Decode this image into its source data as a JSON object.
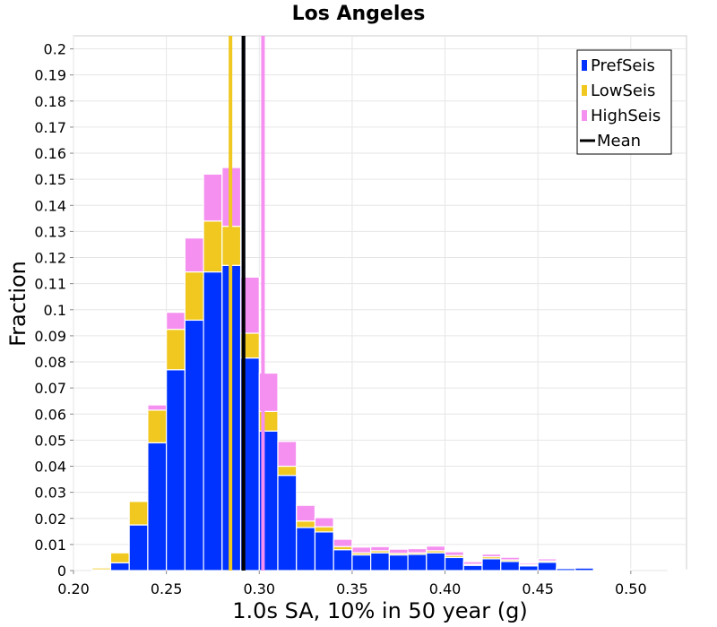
{
  "chart_data": {
    "type": "bar",
    "stacked": true,
    "title": "Los Angeles",
    "xlabel": "1.0s SA, 10% in 50 year (g)",
    "ylabel": "Fraction",
    "xlim": [
      0.2,
      0.53
    ],
    "ylim": [
      0,
      0.205
    ],
    "x_ticks": [
      "0.20",
      "0.25",
      "0.30",
      "0.35",
      "0.40",
      "0.45",
      "0.50"
    ],
    "y_ticks": [
      "0",
      "0.01",
      "0.02",
      "0.03",
      "0.04",
      "0.05",
      "0.06",
      "0.07",
      "0.08",
      "0.09",
      "0.1",
      "0.11",
      "0.12",
      "0.13",
      "0.14",
      "0.15",
      "0.16",
      "0.17",
      "0.18",
      "0.19",
      "0.2"
    ],
    "grid": true,
    "legend_position": "top-right",
    "bin_width": 0.01,
    "x": [
      0.215,
      0.225,
      0.235,
      0.245,
      0.255,
      0.265,
      0.275,
      0.285,
      0.295,
      0.305,
      0.315,
      0.325,
      0.335,
      0.345,
      0.355,
      0.365,
      0.375,
      0.385,
      0.395,
      0.405,
      0.415,
      0.425,
      0.435,
      0.445,
      0.455,
      0.465,
      0.475,
      0.485,
      0.495,
      0.505,
      0.515,
      0.525
    ],
    "series": [
      {
        "name": "PrefSeis",
        "color": "#0033ff",
        "values": [
          0.0003,
          0.003,
          0.0175,
          0.049,
          0.077,
          0.096,
          0.1145,
          0.117,
          0.0815,
          0.0535,
          0.0365,
          0.0165,
          0.0148,
          0.008,
          0.006,
          0.0068,
          0.006,
          0.0062,
          0.0068,
          0.005,
          0.002,
          0.0045,
          0.0035,
          0.0018,
          0.0032,
          0.0008,
          0.001,
          0.0004,
          0.0003,
          0,
          0,
          0.0003
        ]
      },
      {
        "name": "LowSeis",
        "color": "#f0c820",
        "values": [
          0.0007,
          0.0038,
          0.009,
          0.0125,
          0.0155,
          0.0185,
          0.0195,
          0.015,
          0.0095,
          0.0075,
          0.0035,
          0.0025,
          0.002,
          0.0012,
          0.0008,
          0.0008,
          0.0006,
          0.0006,
          0.0008,
          0.0008,
          0.0004,
          0.0008,
          0.0006,
          0.0004,
          0.0005,
          0.0002,
          0.0002,
          0.0001,
          0.0001,
          0,
          0,
          0
        ]
      },
      {
        "name": "HighSeis",
        "color": "#f590f0",
        "values": [
          0,
          0,
          0,
          0.002,
          0.0065,
          0.013,
          0.018,
          0.0225,
          0.0215,
          0.0147,
          0.0095,
          0.006,
          0.0035,
          0.0028,
          0.0022,
          0.0016,
          0.0016,
          0.0016,
          0.0018,
          0.0014,
          0.001,
          0.001,
          0.001,
          0.0006,
          0.0008,
          0.0002,
          0.0003,
          0.0001,
          0.0001,
          0,
          0,
          0
        ]
      }
    ],
    "vertical_lines": [
      {
        "series": "LowSeis",
        "x": 0.2845,
        "color": "#f0c820"
      },
      {
        "series": "HighSeis",
        "x": 0.302,
        "color": "#f590f0"
      },
      {
        "series": "PrefSeis",
        "x": 0.2915,
        "color": "#003399"
      },
      {
        "series": "Mean",
        "x": 0.2915,
        "color": "#000000"
      }
    ],
    "legend": [
      {
        "label": "PrefSeis",
        "color": "#0033ff",
        "marker": "box"
      },
      {
        "label": "LowSeis",
        "color": "#f0c820",
        "marker": "box"
      },
      {
        "label": "HighSeis",
        "color": "#f590f0",
        "marker": "box"
      },
      {
        "label": "Mean",
        "color": "#000000",
        "marker": "line"
      }
    ]
  }
}
